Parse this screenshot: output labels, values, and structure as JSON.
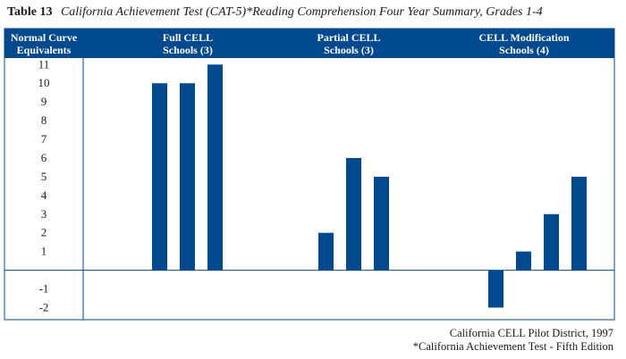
{
  "table_label": "Table 13",
  "title": "California Achievement Test (CAT-5)*Reading Comprehension Four Year Summary, Grades 1-4",
  "header": {
    "ylabel_line1": "Normal Curve",
    "ylabel_line2": "Equivalents",
    "groups": [
      {
        "line1": "Full CELL",
        "line2": "Schools (3)"
      },
      {
        "line1": "Partial CELL",
        "line2": "Schools (3)"
      },
      {
        "line1": "CELL Modification",
        "line2": "Schools (4)"
      }
    ]
  },
  "source_line1": "California CELL Pilot District, 1997",
  "source_line2": "*California Achievement Test - Fifth Edition",
  "colors": {
    "bar": "#00498f",
    "header_bg": "#00498f",
    "frame": "#00498f"
  },
  "chart_data": {
    "type": "bar",
    "groups": [
      "Full CELL Schools (3)",
      "Partial CELL Schools (3)",
      "CELL Modification Schools (4)"
    ],
    "series": [
      {
        "group": "Full CELL Schools (3)",
        "values": [
          10,
          10,
          11
        ]
      },
      {
        "group": "Partial CELL Schools (3)",
        "values": [
          2,
          6,
          5
        ]
      },
      {
        "group": "CELL Modification Schools (4)",
        "values": [
          -2,
          1,
          3,
          5
        ]
      }
    ],
    "yticks": [
      11,
      10,
      9,
      8,
      7,
      6,
      5,
      4,
      3,
      2,
      1,
      -1,
      -2
    ],
    "ylim": [
      -2.6,
      11.3
    ],
    "ylabel": "Normal Curve Equivalents",
    "grid": false
  }
}
